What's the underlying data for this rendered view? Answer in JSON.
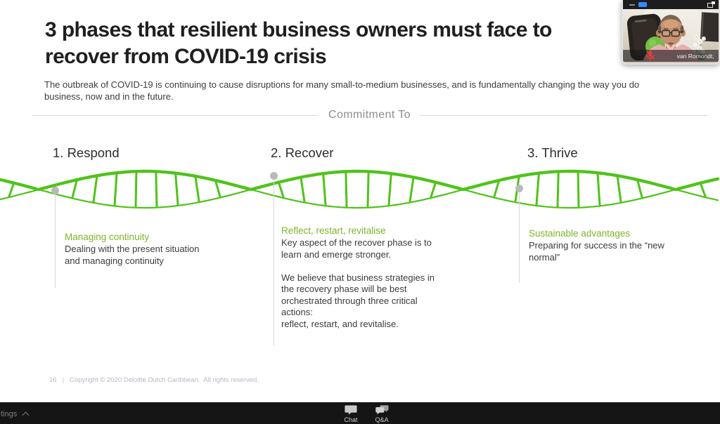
{
  "slide": {
    "title": "3 phases that resilient business owners must face to\nrecover from COVID-19 crisis",
    "subtitle": "The outbreak of COVID-19 is continuing to cause disruptions for many small-to-medium businesses, and is fundamentally changing the way you do\nbusiness, now and in the future.",
    "section_label": "Commitment To",
    "phases": [
      {
        "heading": "1. Respond",
        "subheading": "Managing continuity",
        "body": "Dealing with the present situation\nand managing continuity"
      },
      {
        "heading": "2. Recover",
        "subheading": "Reflect, restart, revitalise",
        "body": "Key aspect of the recover phase is to\nlearn and emerge stronger.\n\nWe believe that business strategies in\nthe recovery phase will be best\norchestrated through three critical\nactions:\nreflect, restart, and revitalise."
      },
      {
        "heading": "3. Thrive",
        "subheading": "Sustainable advantages",
        "body": "Preparing for success in the “new\nnormal”"
      }
    ],
    "footer": {
      "page_number": "16",
      "separator": "|",
      "copyright": "Copyright © 2020 Deloitte Dutch Caribbean.  All rights reserved."
    }
  },
  "video_window": {
    "participant_name": "van Romondt, Michael-Leo",
    "icons": {
      "minimize": "dash",
      "blue_button": "blue-rectangle",
      "layout": "overlap-squares",
      "mic_status": "muted-microphone"
    }
  },
  "toolbar": {
    "settings_fragment": "tings",
    "caret_icon": "chevron-up",
    "chat_label": "Chat",
    "chat_icon": "speech-bubble",
    "qa_label": "Q&A",
    "qa_icon": "double-speech-bubble"
  },
  "colors": {
    "accent_green": "#4fc31a",
    "heading_green": "#7cb528",
    "zoom_blue": "#2d8cff",
    "mic_red": "#e23c3c",
    "toolbar_bg": "#151515"
  }
}
